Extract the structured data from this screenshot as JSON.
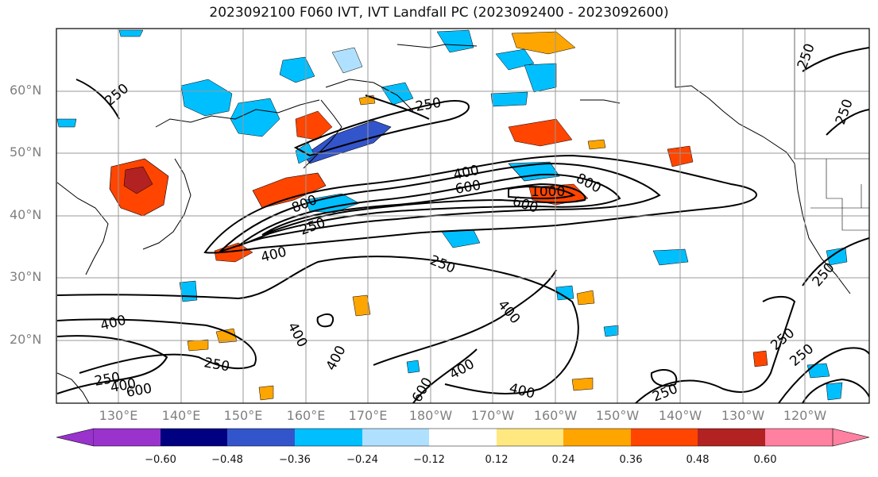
{
  "title": "2023092100 F060 IVT, IVT Landfall PC (2023092400 - 2023092600)",
  "lat_labels": [
    "60°N",
    "50°N",
    "40°N",
    "30°N",
    "20°N"
  ],
  "lon_labels": [
    "130°E",
    "140°E",
    "150°E",
    "160°E",
    "170°E",
    "180°W",
    "170°W",
    "160°W",
    "150°W",
    "140°W",
    "130°W",
    "120°W"
  ],
  "contour_labels": [
    "250",
    "250",
    "250",
    "250",
    "250",
    "400",
    "600",
    "800",
    "1000",
    "800",
    "600",
    "400",
    "250",
    "250",
    "400",
    "400",
    "400",
    "400",
    "400",
    "600",
    "400",
    "250",
    "250",
    "250",
    "250",
    "250",
    "400",
    "600"
  ],
  "colorbar": {
    "tick_labels": [
      "−0.60",
      "−0.48",
      "−0.36",
      "−0.24",
      "−0.12",
      "0.12",
      "0.24",
      "0.36",
      "0.48",
      "0.60"
    ],
    "colors": [
      "#9933cc",
      "#000080",
      "#3355cc",
      "#00bfff",
      "#b0e0ff",
      "#ffffff",
      "#ffe880",
      "#ffa500",
      "#ff4500",
      "#b22222",
      "#ff80a0"
    ]
  },
  "colors": {
    "warm_light": "#ffe880",
    "warm_mid": "#ffa500",
    "warm_strong": "#ff4500",
    "warm_max": "#b22222",
    "cool_light": "#b0e0ff",
    "cool_mid": "#00bfff",
    "cool_strong": "#3355cc",
    "cool_max": "#000080"
  }
}
